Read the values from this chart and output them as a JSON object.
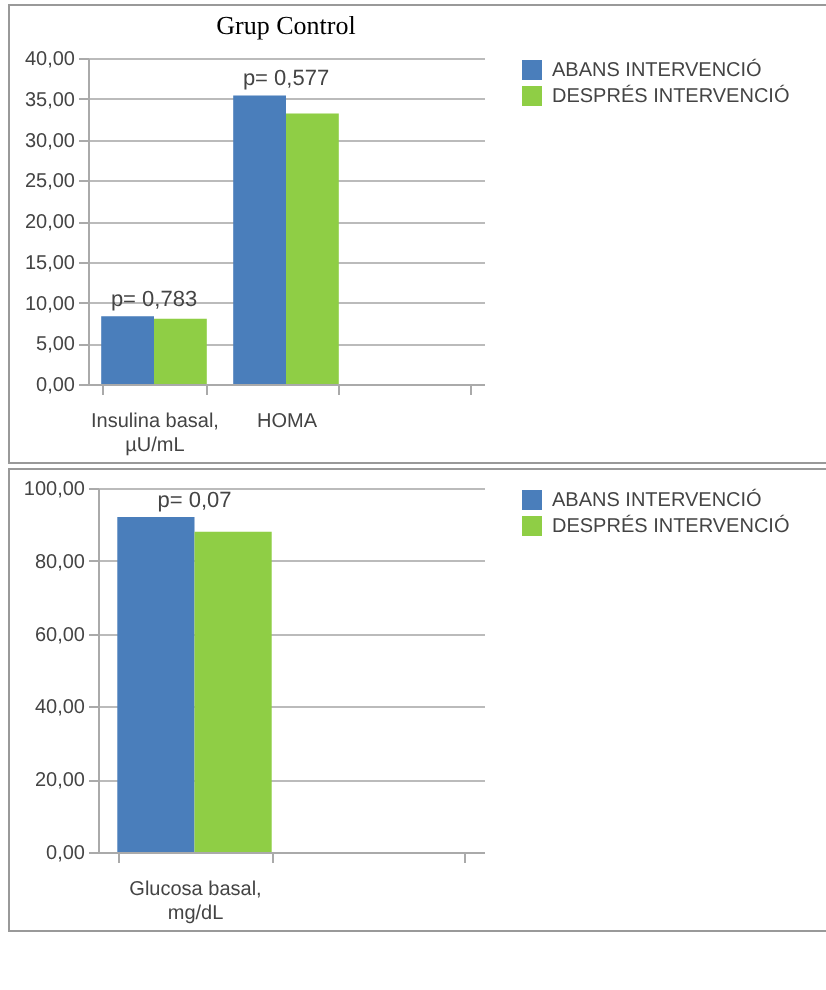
{
  "chart_data": [
    {
      "type": "bar",
      "title": "Grup Control",
      "categories": [
        "Insulina basal, µU/mL",
        "HOMA",
        null
      ],
      "series": [
        {
          "name": "ABANS INTERVENCIÓ",
          "color": "#4a7ebb",
          "values": [
            8.3,
            35.4,
            null
          ]
        },
        {
          "name": "DESPRÉS INTERVENCIÓ",
          "color": "#8fce45",
          "values": [
            8.0,
            33.2,
            null
          ]
        }
      ],
      "ylim": [
        0,
        40
      ],
      "yticks": [
        {
          "value": 0,
          "label": "0,00"
        },
        {
          "value": 5,
          "label": "5,00"
        },
        {
          "value": 10,
          "label": "10,00"
        },
        {
          "value": 15,
          "label": "15,00"
        },
        {
          "value": 20,
          "label": "20,00"
        },
        {
          "value": 25,
          "label": "25,00"
        },
        {
          "value": 30,
          "label": "30,00"
        },
        {
          "value": 35,
          "label": "35,00"
        },
        {
          "value": 40,
          "label": "40,00"
        }
      ],
      "grid": "y",
      "legend": "right",
      "annotations": [
        {
          "text": "p= 0,783",
          "x": "Insulina basal, µU/mL",
          "y": 8.3
        },
        {
          "text": "p= 0,577",
          "x": "HOMA",
          "y": 35.4
        }
      ]
    },
    {
      "type": "bar",
      "categories": [
        "Glucosa basal, mg/dL",
        null
      ],
      "series": [
        {
          "name": "ABANS INTERVENCIÓ",
          "color": "#4a7ebb",
          "values": [
            92,
            null
          ]
        },
        {
          "name": "DESPRÉS INTERVENCIÓ",
          "color": "#8fce45",
          "values": [
            88,
            null
          ]
        }
      ],
      "ylim": [
        0,
        100
      ],
      "yticks": [
        {
          "value": 0,
          "label": "0,00"
        },
        {
          "value": 20,
          "label": "20,00"
        },
        {
          "value": 40,
          "label": "40,00"
        },
        {
          "value": 60,
          "label": "60,00"
        },
        {
          "value": 80,
          "label": "80,00"
        },
        {
          "value": 100,
          "label": "100,00"
        }
      ],
      "grid": "y",
      "legend": "right",
      "annotations": [
        {
          "text": "p= 0,07",
          "x": "Glucosa basal, mg/dL",
          "y": 92
        }
      ]
    }
  ]
}
